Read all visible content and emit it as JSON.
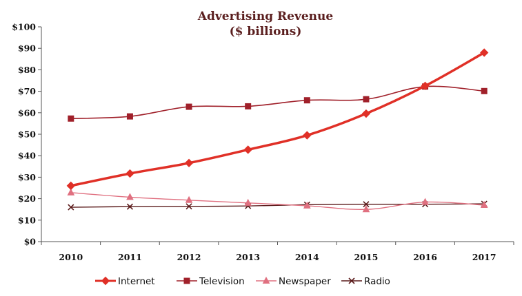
{
  "chart_data": {
    "type": "line",
    "title": "Advertising Revenue",
    "subtitle": "($ billions)",
    "xlabel": "",
    "ylabel": "",
    "x": [
      "2010",
      "2011",
      "2012",
      "2013",
      "2014",
      "2015",
      "2016",
      "2017"
    ],
    "ylim": [
      0,
      100
    ],
    "yticks": [
      0,
      10,
      20,
      30,
      40,
      50,
      60,
      70,
      80,
      90,
      100
    ],
    "ytick_labels": [
      "$0",
      "$10",
      "$20",
      "$30",
      "$40",
      "$50",
      "$60",
      "$70",
      "$80",
      "$90",
      "$100"
    ],
    "grid": false,
    "legend_position": "bottom",
    "series": [
      {
        "name": "Internet",
        "values": [
          26.0,
          31.7,
          36.6,
          42.8,
          49.5,
          59.6,
          72.5,
          88.0
        ],
        "color": "#e03027",
        "marker": "diamond"
      },
      {
        "name": "Television",
        "values": [
          57.3,
          58.3,
          62.8,
          63.0,
          65.8,
          66.3,
          72.2,
          70.1
        ],
        "color": "#a0202a",
        "marker": "square"
      },
      {
        "name": "Newspaper",
        "values": [
          22.8,
          20.7,
          19.3,
          18.0,
          16.7,
          15.0,
          18.4,
          17.0
        ],
        "color": "#e07080",
        "marker": "triangle"
      },
      {
        "name": "Radio",
        "values": [
          16.0,
          16.3,
          16.4,
          16.6,
          17.2,
          17.4,
          17.4,
          17.6
        ],
        "color": "#5a1a1a",
        "marker": "x"
      }
    ]
  }
}
